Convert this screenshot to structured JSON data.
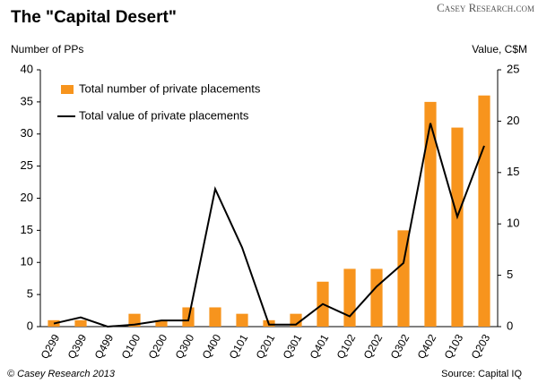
{
  "chart_data": {
    "type": "bar",
    "title": "The \"Capital Desert\"",
    "y_label": "Number of PPs",
    "y2_label": "Value, C$M",
    "brand": "Casey Research.com",
    "copyright": "© Casey Research 2013",
    "source": "Source: Capital IQ",
    "categories": [
      "Q299",
      "Q399",
      "Q499",
      "Q100",
      "Q200",
      "Q300",
      "Q400",
      "Q101",
      "Q201",
      "Q301",
      "Q401",
      "Q102",
      "Q202",
      "Q302",
      "Q402",
      "Q103",
      "Q203"
    ],
    "series": [
      {
        "name": "Total number of private placements",
        "type": "bar",
        "color": "#f7941d",
        "values": [
          1,
          1,
          0,
          2,
          1,
          3,
          3,
          2,
          1,
          2,
          7,
          9,
          9,
          15,
          35,
          31,
          36
        ]
      },
      {
        "name": "Total value of private placements",
        "type": "line",
        "color": "#000000",
        "axis": "y2",
        "values": [
          0.3,
          0.9,
          0,
          0.2,
          0.6,
          0.6,
          13.4,
          7.7,
          0.2,
          0.2,
          2.2,
          1.0,
          3.9,
          6.2,
          19.8,
          10.7,
          17.6
        ]
      }
    ],
    "ylim": [
      0,
      40
    ],
    "yticks": [
      0,
      5,
      10,
      15,
      20,
      25,
      30,
      35,
      40
    ],
    "y2lim": [
      0,
      25
    ],
    "y2ticks": [
      0,
      5,
      10,
      15,
      20,
      25
    ],
    "grid": false
  }
}
